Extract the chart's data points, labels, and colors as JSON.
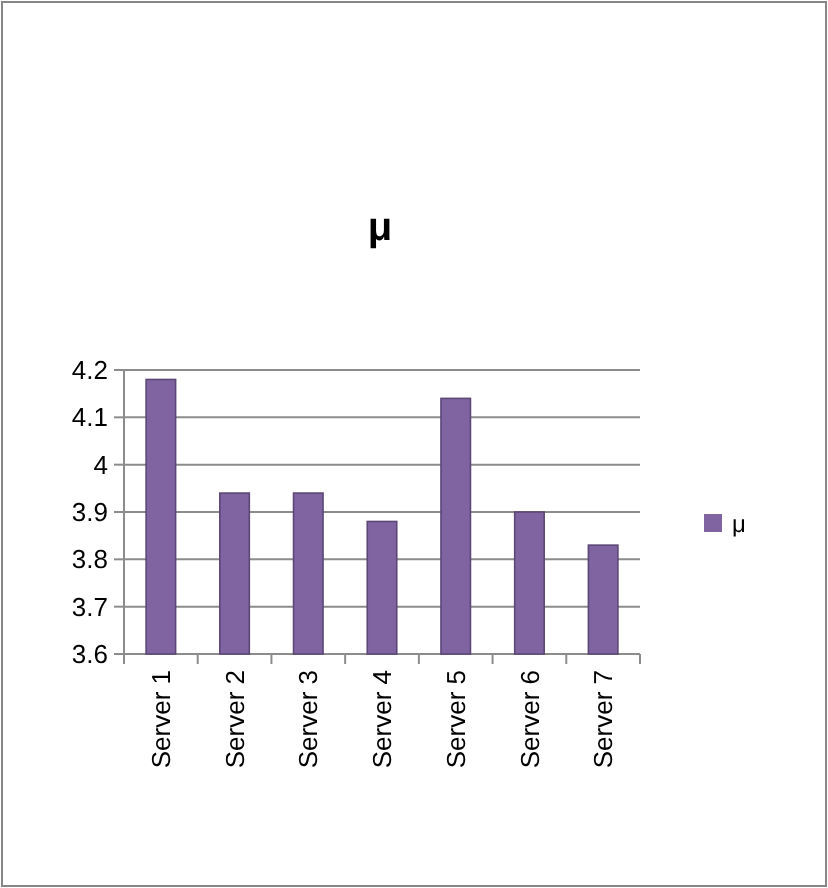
{
  "chart_data": {
    "type": "bar",
    "title": "μ",
    "categories": [
      "Server 1",
      "Server 2",
      "Server 3",
      "Server 4",
      "Server 5",
      "Server 6",
      "Server 7"
    ],
    "series": [
      {
        "name": "μ",
        "color": "#8064a2",
        "values": [
          4.18,
          3.94,
          3.94,
          3.88,
          4.14,
          3.9,
          3.83
        ]
      }
    ],
    "ylim": [
      3.6,
      4.2
    ],
    "yticks": [
      3.6,
      3.7,
      3.8,
      3.9,
      4,
      4.1,
      4.2
    ],
    "grid": "y",
    "legend": "right"
  }
}
